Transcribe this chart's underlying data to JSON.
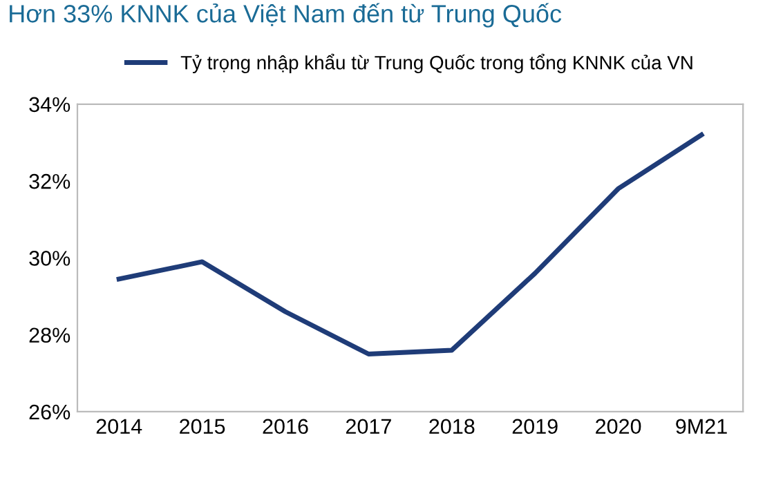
{
  "chart_data": {
    "type": "line",
    "title": "Hơn 33% KNNK của Việt Nam đến từ Trung Quốc",
    "categories": [
      "2014",
      "2015",
      "2016",
      "2017",
      "2018",
      "2019",
      "2020",
      "9M21"
    ],
    "series": [
      {
        "name": "Tỷ trọng nhập khẩu từ Trung Quốc trong tổng KNNK của VN",
        "color": "#1f3c78",
        "values": [
          29.45,
          29.9,
          28.6,
          27.5,
          27.6,
          29.6,
          31.8,
          33.2
        ]
      }
    ],
    "ylim": [
      26,
      34
    ],
    "yticks": [
      {
        "value": 26,
        "label": "26%"
      },
      {
        "value": 28,
        "label": "28%"
      },
      {
        "value": 30,
        "label": "30%"
      },
      {
        "value": 32,
        "label": "32%"
      },
      {
        "value": 34,
        "label": "34%"
      }
    ],
    "grid": false,
    "legend": "top",
    "marker": "none",
    "line_style": "solid"
  }
}
